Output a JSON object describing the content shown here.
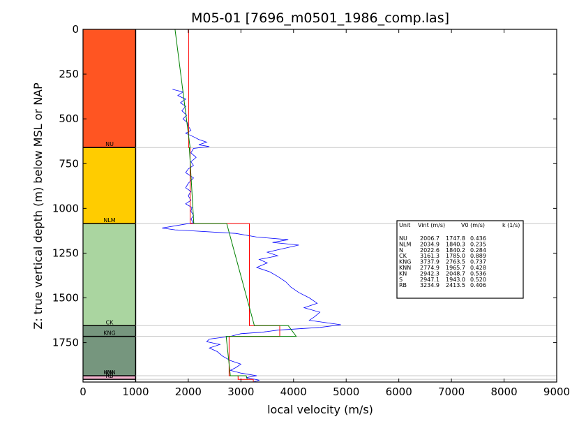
{
  "chart_data": {
    "type": "line",
    "title": "M05-01 [7696_m0501_1986_comp.las]",
    "xlabel": "local velocity (m/s)",
    "ylabel": "Z: true vertical depth (m) below MSL or NAP",
    "xlim": [
      0,
      9000
    ],
    "ylim": [
      1970,
      0
    ],
    "y_inverted": true,
    "xticks": [
      "0",
      "1000",
      "2000",
      "3000",
      "4000",
      "5000",
      "6000",
      "7000",
      "8000",
      "9000"
    ],
    "yticks": [
      "0",
      "250",
      "500",
      "750",
      "1000",
      "1250",
      "1500",
      "1750"
    ],
    "grid": false,
    "units": [
      {
        "name": "NU",
        "top": 0,
        "base": 660,
        "color": "#ff5522"
      },
      {
        "name": "NLM",
        "top": 660,
        "base": 1085,
        "color": "#ffcc00"
      },
      {
        "name": "CK",
        "top": 1085,
        "base": 1655,
        "color": "#aad5a0"
      },
      {
        "name": "KNG",
        "top": 1655,
        "base": 1715,
        "color": "#76967e"
      },
      {
        "name": "KNN",
        "top": 1715,
        "base": 1935,
        "color": "#76967e"
      },
      {
        "name": "KN",
        "top": 1935,
        "base": 1937,
        "color": "#76967e"
      },
      {
        "name": "RB",
        "top": 1937,
        "base": 1955,
        "color": "#f5b3cf"
      }
    ],
    "boundaries": [
      660,
      1085,
      1655,
      1715,
      1935,
      1955
    ],
    "series": [
      {
        "color": "#0000ff",
        "points": [
          [
            1700,
            335
          ],
          [
            1900,
            350
          ],
          [
            1800,
            370
          ],
          [
            1950,
            390
          ],
          [
            1850,
            410
          ],
          [
            1950,
            430
          ],
          [
            1880,
            455
          ],
          [
            1970,
            480
          ],
          [
            1900,
            500
          ],
          [
            1980,
            520
          ],
          [
            2000,
            540
          ],
          [
            2050,
            565
          ],
          [
            1950,
            580
          ],
          [
            2100,
            600
          ],
          [
            2200,
            615
          ],
          [
            2350,
            630
          ],
          [
            2200,
            645
          ],
          [
            2400,
            655
          ],
          [
            2100,
            665
          ],
          [
            2050,
            690
          ],
          [
            2150,
            715
          ],
          [
            2050,
            740
          ],
          [
            2100,
            760
          ],
          [
            2000,
            780
          ],
          [
            1950,
            800
          ],
          [
            2100,
            830
          ],
          [
            2000,
            860
          ],
          [
            1950,
            885
          ],
          [
            2050,
            905
          ],
          [
            2000,
            930
          ],
          [
            2050,
            955
          ],
          [
            1950,
            975
          ],
          [
            2070,
            995
          ],
          [
            2050,
            1015
          ],
          [
            2100,
            1040
          ],
          [
            2050,
            1060
          ],
          [
            2100,
            1080
          ],
          [
            1500,
            1110
          ],
          [
            1750,
            1120
          ],
          [
            2900,
            1140
          ],
          [
            3300,
            1160
          ],
          [
            3900,
            1175
          ],
          [
            3600,
            1190
          ],
          [
            4100,
            1205
          ],
          [
            3800,
            1225
          ],
          [
            3500,
            1245
          ],
          [
            3700,
            1265
          ],
          [
            3350,
            1285
          ],
          [
            3500,
            1305
          ],
          [
            3300,
            1330
          ],
          [
            3550,
            1355
          ],
          [
            3700,
            1380
          ],
          [
            3850,
            1410
          ],
          [
            3950,
            1440
          ],
          [
            4100,
            1470
          ],
          [
            4300,
            1500
          ],
          [
            4450,
            1530
          ],
          [
            4200,
            1555
          ],
          [
            4500,
            1580
          ],
          [
            4400,
            1605
          ],
          [
            4300,
            1625
          ],
          [
            4900,
            1650
          ],
          [
            4500,
            1665
          ],
          [
            3700,
            1680
          ],
          [
            3400,
            1692
          ],
          [
            3000,
            1700
          ],
          [
            2800,
            1715
          ],
          [
            2400,
            1730
          ],
          [
            2350,
            1745
          ],
          [
            2600,
            1760
          ],
          [
            2400,
            1780
          ],
          [
            2550,
            1800
          ],
          [
            2650,
            1825
          ],
          [
            2800,
            1850
          ],
          [
            3000,
            1870
          ],
          [
            2900,
            1890
          ],
          [
            2800,
            1905
          ],
          [
            3000,
            1920
          ],
          [
            3300,
            1935
          ],
          [
            3100,
            1945
          ],
          [
            3350,
            1960
          ],
          [
            3250,
            1968
          ]
        ]
      },
      {
        "color": "#ff0000",
        "points": [
          [
            2006.7,
            0
          ],
          [
            2006.7,
            660
          ],
          [
            2034.9,
            660
          ],
          [
            2034.9,
            1085
          ],
          [
            3161.3,
            1085
          ],
          [
            3161.3,
            1655
          ],
          [
            3737.9,
            1655
          ],
          [
            3737.9,
            1715
          ],
          [
            2774.9,
            1715
          ],
          [
            2774.9,
            1935
          ],
          [
            2942.3,
            1935
          ],
          [
            2942.3,
            1937
          ],
          [
            2947.1,
            1937
          ],
          [
            2947.1,
            1955
          ],
          [
            3234.9,
            1955
          ],
          [
            3234.9,
            1970
          ]
        ]
      },
      {
        "color": "#008000",
        "points": [
          [
            1747.8,
            0
          ],
          [
            2035,
            660
          ],
          [
            2020,
            660
          ],
          [
            2105,
            1085
          ],
          [
            2730,
            1085
          ],
          [
            3255,
            1655
          ],
          [
            3900,
            1655
          ],
          [
            4050,
            1715
          ],
          [
            2720,
            1715
          ],
          [
            2800,
            1935
          ],
          [
            3100,
            1935
          ],
          [
            3120,
            1955
          ]
        ]
      }
    ],
    "table": {
      "header": [
        "Unit",
        "Vint (m/s)",
        "V0 (m/s)",
        "k (1/s)"
      ],
      "rows": [
        [
          "NU",
          "2006.7",
          "1747.8",
          "0.436"
        ],
        [
          "NLM",
          "2034.9",
          "1840.3",
          "0.235"
        ],
        [
          "N",
          "2022.6",
          "1840.2",
          "0.284"
        ],
        [
          "CK",
          "3161.3",
          "1785.0",
          "0.889"
        ],
        [
          "KNG",
          "3737.9",
          "2763.5",
          "0.737"
        ],
        [
          "KNN",
          "2774.9",
          "1965.7",
          "0.428"
        ],
        [
          "KN",
          "2942.3",
          "2048.7",
          "0.536"
        ],
        [
          "S",
          "2947.1",
          "1943.0",
          "0.520"
        ],
        [
          "RB",
          "3234.9",
          "2413.5",
          "0.406"
        ]
      ]
    }
  }
}
